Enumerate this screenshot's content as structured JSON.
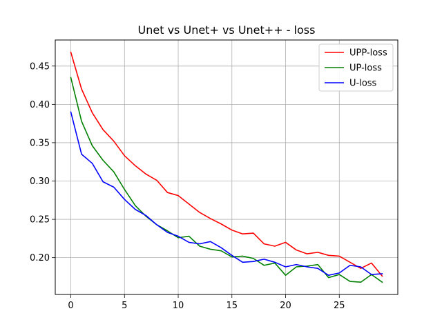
{
  "chart_data": {
    "type": "line",
    "title": "Unet vs Unet+ vs Unet++ - loss",
    "xlabel": "",
    "ylabel": "",
    "xlim": [
      -1.45,
      30.45
    ],
    "ylim": [
      0.152,
      0.484
    ],
    "xticks": [
      0,
      5,
      10,
      15,
      20,
      25
    ],
    "yticks": [
      0.2,
      0.25,
      0.3,
      0.35,
      0.4,
      0.45
    ],
    "xtick_labels": [
      "0",
      "5",
      "10",
      "15",
      "20",
      "25"
    ],
    "ytick_labels": [
      "0.20",
      "0.25",
      "0.30",
      "0.35",
      "0.40",
      "0.45"
    ],
    "grid": true,
    "legend_position": "top-right",
    "x": [
      0,
      1,
      2,
      3,
      4,
      5,
      6,
      7,
      8,
      9,
      10,
      11,
      12,
      13,
      14,
      15,
      16,
      17,
      18,
      19,
      20,
      21,
      22,
      23,
      24,
      25,
      26,
      27,
      28,
      29
    ],
    "series": [
      {
        "name": "UPP-loss",
        "color": "#ff0000",
        "values": [
          0.468,
          0.42,
          0.389,
          0.367,
          0.352,
          0.333,
          0.32,
          0.309,
          0.301,
          0.285,
          0.281,
          0.27,
          0.259,
          0.251,
          0.244,
          0.236,
          0.231,
          0.232,
          0.218,
          0.215,
          0.22,
          0.21,
          0.205,
          0.207,
          0.203,
          0.202,
          0.194,
          0.186,
          0.193,
          0.176
        ]
      },
      {
        "name": "UP-loss",
        "color": "#008000",
        "values": [
          0.435,
          0.378,
          0.346,
          0.327,
          0.312,
          0.289,
          0.268,
          0.254,
          0.243,
          0.235,
          0.226,
          0.228,
          0.215,
          0.211,
          0.209,
          0.201,
          0.202,
          0.199,
          0.19,
          0.193,
          0.177,
          0.188,
          0.189,
          0.191,
          0.174,
          0.178,
          0.169,
          0.168,
          0.178,
          0.168
        ]
      },
      {
        "name": "U-loss",
        "color": "#0000ff",
        "values": [
          0.39,
          0.335,
          0.323,
          0.299,
          0.292,
          0.276,
          0.263,
          0.255,
          0.243,
          0.233,
          0.228,
          0.22,
          0.218,
          0.221,
          0.213,
          0.203,
          0.194,
          0.195,
          0.198,
          0.194,
          0.188,
          0.191,
          0.188,
          0.186,
          0.177,
          0.18,
          0.19,
          0.188,
          0.178,
          0.179
        ]
      }
    ]
  }
}
